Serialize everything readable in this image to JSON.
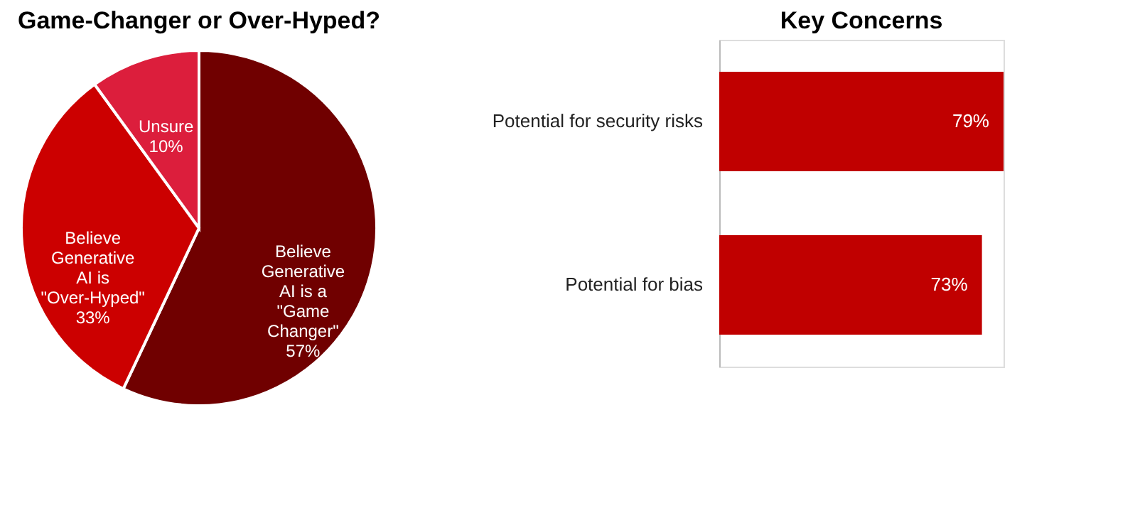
{
  "chart_data": [
    {
      "type": "pie",
      "title": "Game-Changer or Over-Hyped?",
      "categories": [
        "Believe Generative AI is a \"Game Changer\"",
        "Believe Generative AI is \"Over-Hyped\"",
        "Unsure"
      ],
      "values": [
        57,
        33,
        10
      ],
      "colors": [
        "#700000",
        "#cc0000",
        "#dc1e3c"
      ],
      "value_labels": [
        "57%",
        "33%",
        "10%"
      ]
    },
    {
      "type": "bar",
      "orientation": "horizontal",
      "title": "Key Concerns",
      "categories": [
        "Potential for security risks",
        "Potential for bias"
      ],
      "values": [
        79,
        73
      ],
      "color": "#c00000",
      "value_labels": [
        "79%",
        "73%"
      ],
      "tick_labels": "y"
    }
  ]
}
